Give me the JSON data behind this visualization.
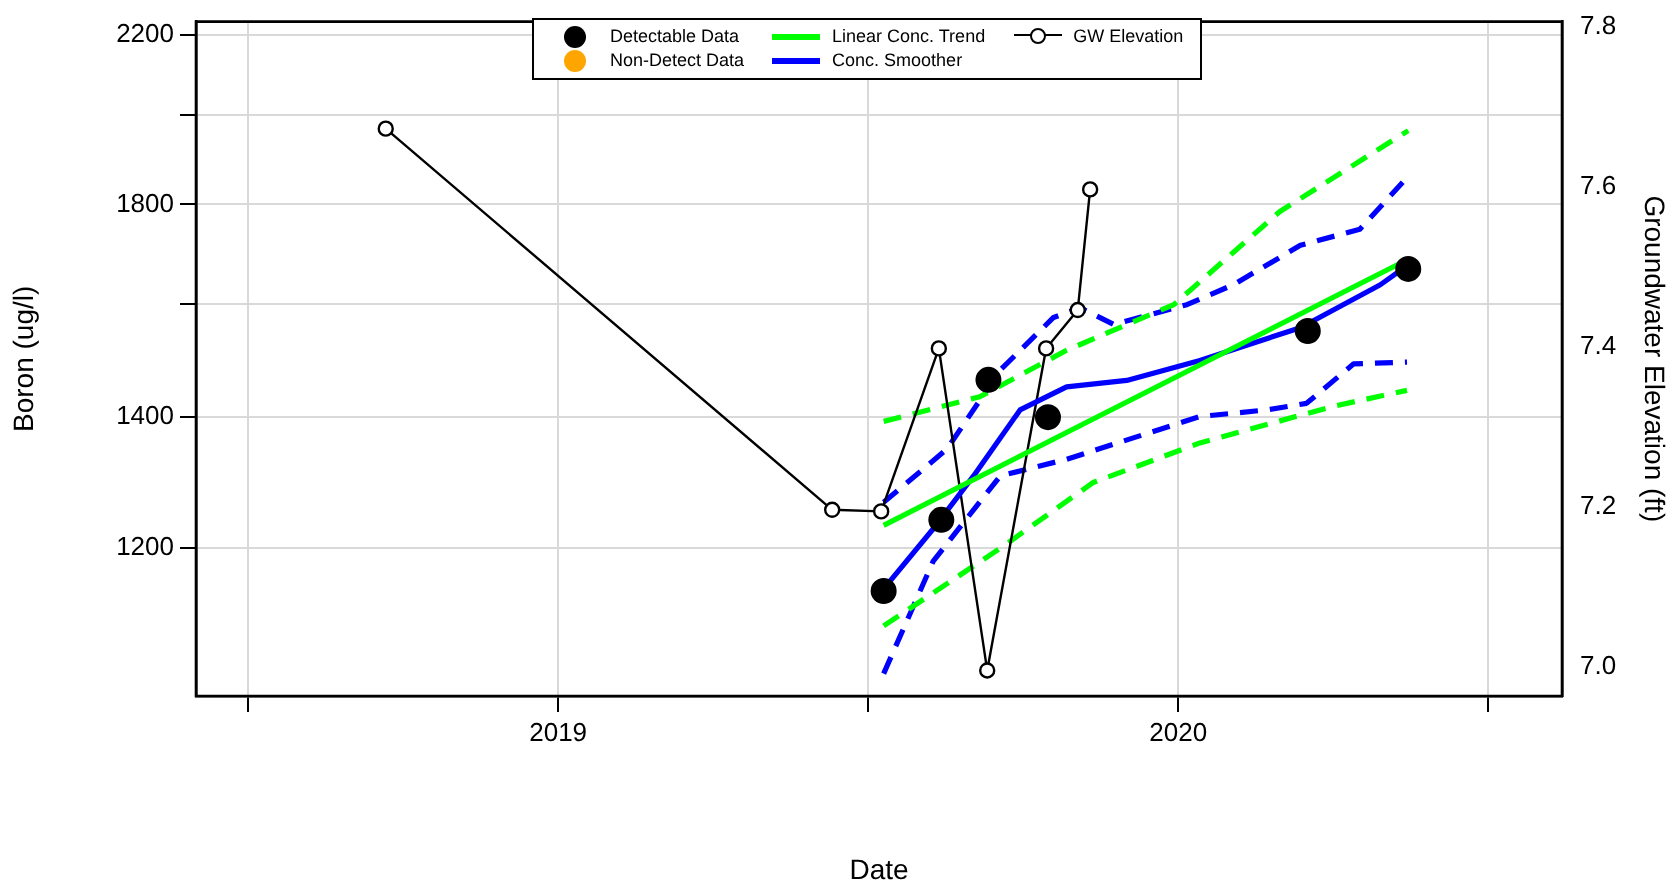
{
  "chart_data": {
    "type": "line",
    "xlabel": "Date",
    "ylabel": "Boron (ug/l)",
    "y2label": "Groundwater Elevation (ft)",
    "xlim": [
      2018.416,
      2020.619
    ],
    "xticks": [
      {
        "value": 2018.5,
        "label": null
      },
      2019,
      {
        "value": 2019.5,
        "label": null
      },
      2020,
      {
        "value": 2020.5,
        "label": null
      }
    ],
    "ylim": [
      1007,
      2234
    ],
    "yticks": [
      1200,
      1400,
      {
        "value": 1600,
        "label": null
      },
      1800,
      {
        "value": 2000,
        "label": null
      },
      2200
    ],
    "y2lim": [
      6.963,
      7.807
    ],
    "y2ticks": [
      {
        "value": 7,
        "label": "7.0"
      },
      7.2,
      7.4,
      7.6,
      7.8
    ],
    "log": "y",
    "grid": true,
    "legend": "top",
    "series": [
      {
        "name": "Detectable Data",
        "type": "scatter",
        "marker": "circle",
        "color": "#000000",
        "x": [
          2019.525,
          2019.618,
          2019.694,
          2019.79,
          2020.209,
          2020.371
        ],
        "values": [
          1140,
          1240,
          1463,
          1400,
          1550,
          1668
        ]
      },
      {
        "name": "Non-Detect Data",
        "type": "scatter",
        "marker": "circle",
        "color": "#ffa500"
      },
      {
        "name": "Linear Conc. Trend",
        "color": "#00ff00",
        "line_style": "solid",
        "x": [
          2019.525,
          2020.371
        ],
        "values": [
          1232,
          1687
        ]
      },
      {
        "name": "Conc. Smoother",
        "color": "#0000ff",
        "line_style": "solid",
        "x": [
          2019.525,
          2019.605,
          2019.67,
          2019.745,
          2019.82,
          2019.917,
          2020.035,
          2020.197,
          2020.326,
          2020.371
        ],
        "values": [
          1143,
          1227,
          1306,
          1412,
          1451,
          1462,
          1497,
          1556,
          1637,
          1676
        ]
      },
      {
        "name": "GW Elevation",
        "marker": "circle",
        "color": "#000000",
        "axis": "y2",
        "x": [
          2018.722,
          2019.442,
          2019.521,
          2019.614,
          2019.692,
          2019.787,
          2019.838,
          2019.858
        ],
        "values": [
          7.673,
          7.196,
          7.194,
          7.398,
          6.995,
          7.398,
          7.446,
          7.597
        ]
      },
      {
        "type": "line",
        "color": "#00ff00",
        "line_style": "dashed",
        "x": [
          2019.525,
          2019.68,
          2019.82,
          2019.993,
          2020.164,
          2020.371
        ],
        "values": [
          1393,
          1434,
          1515,
          1599,
          1785,
          1964
        ]
      },
      {
        "type": "line",
        "color": "#00ff00",
        "line_style": "dashed",
        "x": [
          2019.525,
          2019.713,
          2019.863,
          2020.035,
          2020.25,
          2020.369
        ],
        "values": [
          1094,
          1199,
          1296,
          1358,
          1418,
          1445
        ]
      },
      {
        "type": "line",
        "color": "#0000ff",
        "line_style": "dashed",
        "x": [
          2019.525,
          2019.627,
          2019.713,
          2019.799,
          2019.842,
          2019.896,
          2020.014,
          2020.089,
          2020.197,
          2020.293,
          2020.371
        ],
        "values": [
          1266,
          1348,
          1480,
          1575,
          1593,
          1562,
          1599,
          1637,
          1715,
          1748,
          1861
        ]
      },
      {
        "type": "line",
        "color": "#0000ff",
        "line_style": "dashed",
        "x": [
          2019.525,
          2019.605,
          2019.713,
          2019.82,
          2020.035,
          2020.143,
          2020.207,
          2020.283,
          2020.369
        ],
        "values": [
          1034,
          1181,
          1306,
          1332,
          1401,
          1412,
          1423,
          1491,
          1494
        ]
      }
    ]
  }
}
